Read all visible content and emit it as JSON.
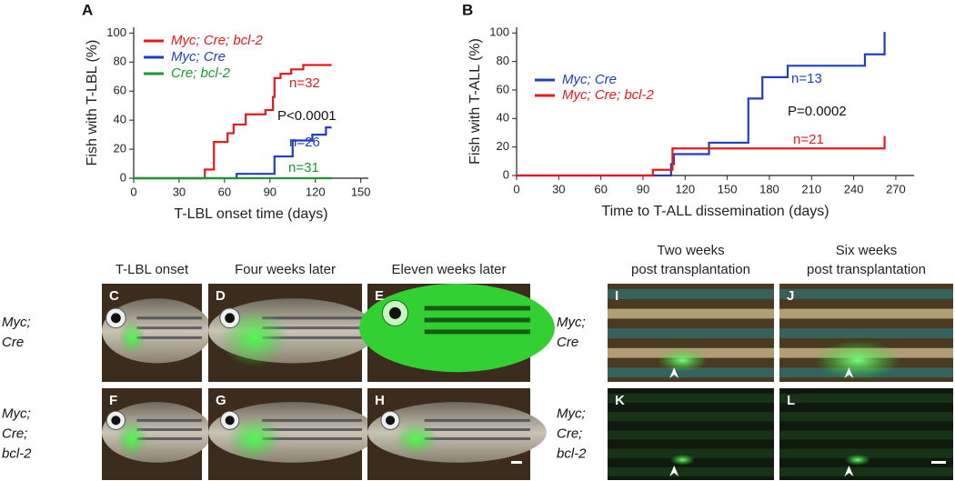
{
  "chart_data": [
    {
      "type": "step",
      "panel_label": "A",
      "x_label": "T-LBL onset time (days)",
      "y_label": "Fish with T-LBL (%)",
      "xlim": [
        0,
        155
      ],
      "xticks": [
        0,
        30,
        60,
        90,
        120,
        150
      ],
      "ylim": [
        0,
        104
      ],
      "yticks": [
        0,
        20,
        40,
        60,
        80,
        100
      ],
      "series": [
        {
          "name": "Myc; Cre; bcl-2",
          "color": "#e8191c",
          "x": [
            0,
            47,
            53,
            62,
            66,
            74,
            87,
            92,
            93,
            97,
            104,
            112,
            130
          ],
          "values": [
            0,
            6,
            25,
            31,
            37,
            44,
            47,
            56,
            69,
            72,
            75,
            78,
            78
          ]
        },
        {
          "name": "Myc; Cre",
          "color": "#1f3fbf",
          "x": [
            0,
            68,
            93,
            105,
            118,
            127,
            130
          ],
          "values": [
            0,
            3,
            15,
            26,
            30,
            35,
            35
          ]
        },
        {
          "name": "Cre; bcl-2",
          "color": "#1a9a2a",
          "x": [
            0,
            130
          ],
          "values": [
            0,
            0
          ]
        }
      ],
      "annotations": [
        {
          "text": "n=32",
          "color": "#e8191c"
        },
        {
          "text": "P<0.0001",
          "color": "#111111"
        },
        {
          "text": "n=26",
          "color": "#1f3fbf"
        },
        {
          "text": "n=31",
          "color": "#1a9a2a"
        }
      ]
    },
    {
      "type": "step",
      "panel_label": "B",
      "x_label": "Time to T-ALL dissemination (days)",
      "y_label": "Fish with T-ALL (%)",
      "xlim": [
        0,
        283
      ],
      "xticks": [
        0,
        30,
        60,
        90,
        120,
        150,
        180,
        210,
        240,
        270
      ],
      "ylim": [
        0,
        104
      ],
      "yticks": [
        0,
        20,
        40,
        60,
        80,
        100
      ],
      "series": [
        {
          "name": "Myc; Cre",
          "color": "#1f3fbf",
          "x": [
            0,
            110,
            112,
            137,
            165,
            175,
            193,
            248,
            262
          ],
          "values": [
            0,
            8,
            15,
            23,
            54,
            69,
            77,
            85,
            100
          ]
        },
        {
          "name": "Myc; Cre; bcl-2",
          "color": "#e8191c",
          "x": [
            0,
            97,
            111,
            262
          ],
          "values": [
            0,
            4,
            19,
            27
          ]
        }
      ],
      "annotations": [
        {
          "text": "n=13",
          "color": "#1f3fbf"
        },
        {
          "text": "P=0.0002",
          "color": "#111111"
        },
        {
          "text": "n=21",
          "color": "#e8191c"
        }
      ]
    }
  ],
  "photo_panels": {
    "left": {
      "column_headers": [
        [
          "T-LBL onset"
        ],
        [
          "Four weeks later"
        ],
        [
          "Eleven weeks later"
        ]
      ],
      "row_labels": [
        [
          "Myc;",
          "Cre"
        ],
        [
          "Myc;",
          "Cre;",
          "bcl-2"
        ]
      ],
      "panel_labels": [
        [
          "C",
          "D",
          "E"
        ],
        [
          "F",
          "G",
          "H"
        ]
      ]
    },
    "right": {
      "column_headers": [
        [
          "Two weeks",
          "post transplantation"
        ],
        [
          "Six weeks",
          "post transplantation"
        ]
      ],
      "row_labels": [
        [
          "Myc;",
          "Cre"
        ],
        [
          "Myc;",
          "Cre;",
          "bcl-2"
        ]
      ],
      "panel_labels": [
        [
          "I",
          "J"
        ],
        [
          "K",
          "L"
        ]
      ]
    }
  }
}
